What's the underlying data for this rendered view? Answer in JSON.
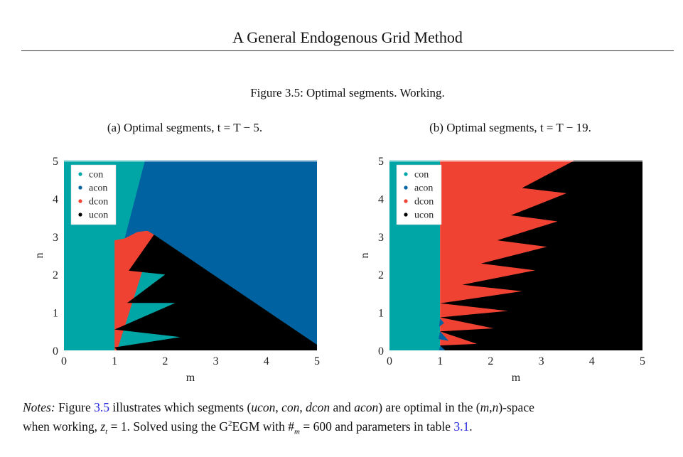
{
  "header": {
    "running_title": "A General Endogenous Grid Method"
  },
  "figure": {
    "caption": "Figure 3.5: Optimal segments. Working.",
    "subcaption_a": "(a) Optimal segments, t = T − 5.",
    "subcaption_b": "(b) Optimal segments, t = T − 19."
  },
  "colors": {
    "con": "#00A6A6",
    "acon": "#0062A0",
    "dcon": "#F04232",
    "ucon": "#000000",
    "link": "#2424e0"
  },
  "chart_data": [
    {
      "type": "region-map",
      "xlabel": "m",
      "ylabel": "n",
      "xlim": [
        0,
        5
      ],
      "ylim": [
        0,
        5
      ],
      "xticks": [
        0,
        1,
        2,
        3,
        4,
        5
      ],
      "yticks": [
        0,
        1,
        2,
        3,
        4,
        5
      ],
      "legend": {
        "placement": "top-left",
        "entries": [
          "con",
          "acon",
          "dcon",
          "ucon"
        ]
      },
      "regions": [
        {
          "segment": "con",
          "polygon": [
            [
              0,
              0
            ],
            [
              5,
              0
            ],
            [
              5,
              5
            ],
            [
              0,
              5
            ]
          ]
        },
        {
          "segment": "acon",
          "polygon": [
            [
              1.6,
              5
            ],
            [
              5,
              5
            ],
            [
              5,
              0.15
            ],
            [
              1.78,
              3.05
            ],
            [
              1.6,
              3.15
            ],
            [
              1.2,
              2.95
            ]
          ]
        },
        {
          "segment": "dcon",
          "polygon": [
            [
              1,
              0
            ],
            [
              1,
              2.9
            ],
            [
              1.2,
              2.95
            ],
            [
              1.45,
              3.12
            ],
            [
              1.65,
              3.15
            ],
            [
              1.78,
              3.05
            ],
            [
              1.05,
              0
            ]
          ]
        },
        {
          "segment": "ucon",
          "polygon": [
            [
              1.78,
              3.05
            ],
            [
              5,
              0.15
            ],
            [
              5,
              0
            ],
            [
              1.05,
              0
            ],
            [
              1,
              0.08
            ],
            [
              2.3,
              0.35
            ],
            [
              1,
              0.55
            ],
            [
              2.2,
              1.25
            ],
            [
              1.25,
              1.25
            ],
            [
              2.0,
              2.0
            ],
            [
              1.28,
              2.1
            ]
          ]
        }
      ]
    },
    {
      "type": "region-map",
      "xlabel": "m",
      "ylabel": "n",
      "xlim": [
        0,
        5
      ],
      "ylim": [
        0,
        5
      ],
      "xticks": [
        0,
        1,
        2,
        3,
        4,
        5
      ],
      "yticks": [
        0,
        1,
        2,
        3,
        4,
        5
      ],
      "legend": {
        "placement": "top-left",
        "entries": [
          "con",
          "acon",
          "dcon",
          "ucon"
        ]
      },
      "regions": [
        {
          "segment": "con",
          "polygon": [
            [
              0,
              0
            ],
            [
              1,
              0
            ],
            [
              1,
              5
            ],
            [
              0,
              5
            ]
          ]
        },
        {
          "segment": "dcon",
          "polygon": [
            [
              1,
              0
            ],
            [
              5,
              0
            ],
            [
              5,
              5
            ],
            [
              1,
              5
            ]
          ]
        },
        {
          "segment": "ucon",
          "polygon": [
            [
              3.65,
              5
            ],
            [
              2.62,
              4.28
            ],
            [
              3.5,
              4.14
            ],
            [
              2.4,
              3.56
            ],
            [
              3.32,
              3.4
            ],
            [
              2.13,
              2.9
            ],
            [
              3.11,
              2.73
            ],
            [
              1.81,
              2.29
            ],
            [
              2.88,
              2.11
            ],
            [
              1.44,
              1.73
            ],
            [
              2.62,
              1.56
            ],
            [
              1,
              1.24
            ],
            [
              2.34,
              1.04
            ],
            [
              1,
              0.87
            ],
            [
              2.06,
              0.58
            ],
            [
              1,
              0.5
            ],
            [
              1.73,
              0.17
            ],
            [
              1,
              0.13
            ],
            [
              1,
              0
            ],
            [
              5,
              0
            ],
            [
              5,
              5
            ]
          ]
        },
        {
          "segment": "acon",
          "polygon": [
            [
              0.98,
              0.62
            ],
            [
              1,
              0.84
            ],
            [
              1.08,
              0.72
            ]
          ]
        },
        {
          "segment": "acon",
          "polygon": [
            [
              0.97,
              0.3
            ],
            [
              1,
              0.5
            ],
            [
              1.17,
              0.25
            ]
          ]
        },
        {
          "segment": "acon",
          "polygon": [
            [
              0.98,
              0
            ],
            [
              1,
              0.13
            ],
            [
              1.1,
              0
            ]
          ]
        }
      ]
    }
  ],
  "notes": {
    "line1": [
      {
        "t": "Notes:",
        "s": "it"
      },
      {
        "t": " Figure "
      },
      {
        "t": "3.5",
        "s": "lnk"
      },
      {
        "t": " illustrates which segments ("
      },
      {
        "t": "ucon",
        "s": "it"
      },
      {
        "t": ", "
      },
      {
        "t": "con",
        "s": "it"
      },
      {
        "t": ", "
      },
      {
        "t": "dcon",
        "s": "it"
      },
      {
        "t": " and "
      },
      {
        "t": "acon",
        "s": "it"
      },
      {
        "t": ") are optimal in the ("
      },
      {
        "t": "m",
        "s": "it"
      },
      {
        "t": ","
      },
      {
        "t": "n",
        "s": "it"
      },
      {
        "t": ")-space"
      }
    ],
    "line2": [
      {
        "t": "when working, "
      },
      {
        "t": "z",
        "s": "it"
      },
      {
        "t": "t",
        "s": "it sub"
      },
      {
        "t": " = 1. Solved using the G"
      },
      {
        "t": "2",
        "s": "sup"
      },
      {
        "t": "EGM with #"
      },
      {
        "t": "m",
        "s": "it sub"
      },
      {
        "t": " = 600 and parameters in table "
      },
      {
        "t": "3.1",
        "s": "lnk"
      },
      {
        "t": "."
      }
    ]
  }
}
